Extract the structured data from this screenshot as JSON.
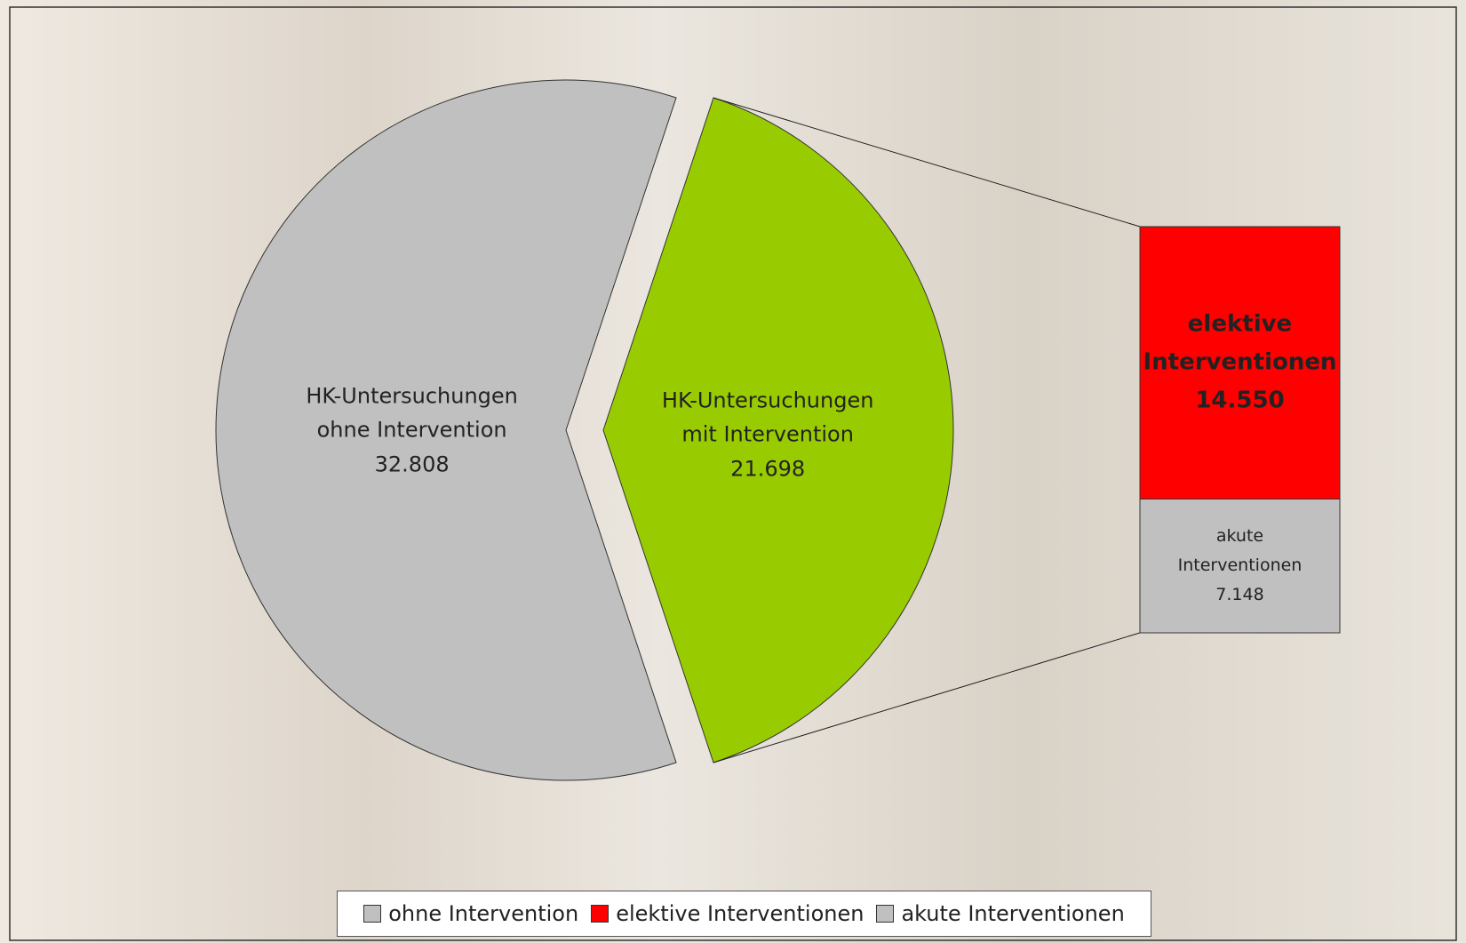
{
  "chart_data": {
    "type": "pie-of-bar",
    "pie": {
      "categories": [
        "HK-Untersuchungen ohne Intervention",
        "HK-Untersuchungen mit Intervention"
      ],
      "values": [
        32808,
        21698
      ],
      "value_labels": [
        "32.808",
        "21.698"
      ],
      "colors": [
        "#c0c0c0",
        "#99cc00"
      ]
    },
    "bar": {
      "series": [
        {
          "name": "elektive Interventionen",
          "color": "#ff0000",
          "values": [
            14550
          ],
          "value_labels": [
            "14.550"
          ]
        },
        {
          "name": "akute Interventionen",
          "color": "#c0c0c0",
          "values": [
            7148
          ],
          "value_labels": [
            "7.148"
          ]
        }
      ]
    },
    "legend": [
      {
        "name": "ohne Intervention",
        "color": "#c0c0c0"
      },
      {
        "name": "elektive Interventionen",
        "color": "#ff0000"
      },
      {
        "name": "akute Interventionen",
        "color": "#c0c0c0"
      }
    ]
  }
}
